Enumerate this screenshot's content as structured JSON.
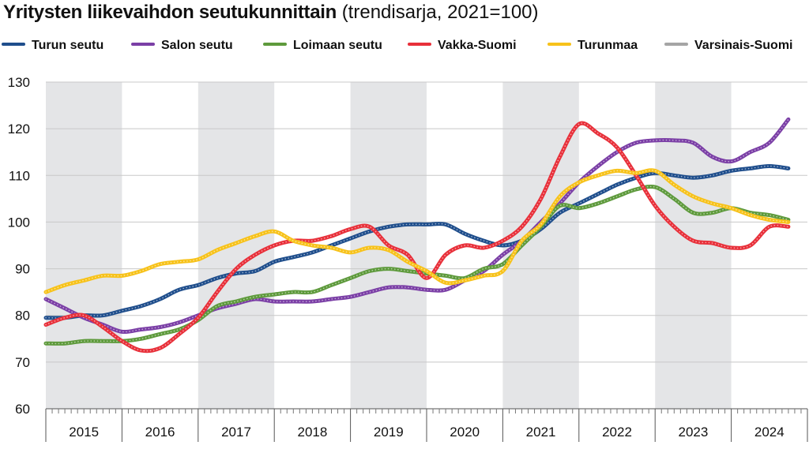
{
  "chart_data": {
    "type": "line",
    "title": "Yritysten liikevaihdon seutukunnittain",
    "subtitle": "(trendisarja, 2021=100)",
    "xlabel": "",
    "ylabel": "",
    "ylim": [
      60,
      130
    ],
    "yticks": [
      60,
      70,
      80,
      90,
      100,
      110,
      120,
      130
    ],
    "xlim": [
      2015.0,
      2025.0
    ],
    "years": [
      "2015",
      "2016",
      "2017",
      "2018",
      "2019",
      "2020",
      "2021",
      "2022",
      "2023",
      "2024"
    ],
    "shaded_years": [
      "2015",
      "2017",
      "2019",
      "2021",
      "2023"
    ],
    "grid": true,
    "legend_position": "top",
    "series": [
      {
        "name": "Turun seutu",
        "color": "#1f4e8c",
        "x": [
          2015.0,
          2015.25,
          2015.5,
          2015.75,
          2016.0,
          2016.25,
          2016.5,
          2016.75,
          2017.0,
          2017.25,
          2017.5,
          2017.75,
          2018.0,
          2018.25,
          2018.5,
          2018.75,
          2019.0,
          2019.25,
          2019.5,
          2019.75,
          2020.0,
          2020.25,
          2020.5,
          2020.75,
          2021.0,
          2021.25,
          2021.5,
          2021.75,
          2022.0,
          2022.25,
          2022.5,
          2022.75,
          2023.0,
          2023.25,
          2023.5,
          2023.75,
          2024.0,
          2024.25,
          2024.5,
          2024.75
        ],
        "values": [
          79.5,
          79.5,
          80.0,
          80.0,
          81.0,
          82.0,
          83.5,
          85.5,
          86.5,
          88.0,
          89.0,
          89.5,
          91.5,
          92.5,
          93.5,
          95.0,
          96.5,
          98.0,
          99.0,
          99.5,
          99.5,
          99.5,
          97.5,
          96.0,
          95.0,
          96.0,
          98.5,
          102.0,
          104.0,
          106.0,
          108.0,
          109.5,
          110.5,
          110.0,
          109.5,
          110.0,
          111.0,
          111.5,
          112.0,
          111.5
        ]
      },
      {
        "name": "Salon seutu",
        "color": "#7b3fa6",
        "x": [
          2015.0,
          2015.25,
          2015.5,
          2015.75,
          2016.0,
          2016.25,
          2016.5,
          2016.75,
          2017.0,
          2017.25,
          2017.5,
          2017.75,
          2018.0,
          2018.25,
          2018.5,
          2018.75,
          2019.0,
          2019.25,
          2019.5,
          2019.75,
          2020.0,
          2020.25,
          2020.5,
          2020.75,
          2021.0,
          2021.25,
          2021.5,
          2021.75,
          2022.0,
          2022.25,
          2022.5,
          2022.75,
          2023.0,
          2023.25,
          2023.5,
          2023.75,
          2024.0,
          2024.25,
          2024.5,
          2024.75
        ],
        "values": [
          83.5,
          81.5,
          79.5,
          78.0,
          76.5,
          77.0,
          77.5,
          78.5,
          80.0,
          81.5,
          82.5,
          83.5,
          83.0,
          83.0,
          83.0,
          83.5,
          84.0,
          85.0,
          86.0,
          86.0,
          85.5,
          85.5,
          87.5,
          89.5,
          93.0,
          96.0,
          100.0,
          104.0,
          108.5,
          112.0,
          115.0,
          117.0,
          117.5,
          117.5,
          117.0,
          114.0,
          113.0,
          115.0,
          117.0,
          122.0
        ]
      },
      {
        "name": "Loimaan seutu",
        "color": "#5e9a3c",
        "x": [
          2015.0,
          2015.25,
          2015.5,
          2015.75,
          2016.0,
          2016.25,
          2016.5,
          2016.75,
          2017.0,
          2017.25,
          2017.5,
          2017.75,
          2018.0,
          2018.25,
          2018.5,
          2018.75,
          2019.0,
          2019.25,
          2019.5,
          2019.75,
          2020.0,
          2020.25,
          2020.5,
          2020.75,
          2021.0,
          2021.25,
          2021.5,
          2021.75,
          2022.0,
          2022.25,
          2022.5,
          2022.75,
          2023.0,
          2023.25,
          2023.5,
          2023.75,
          2024.0,
          2024.25,
          2024.5,
          2024.75
        ],
        "values": [
          74.0,
          74.0,
          74.5,
          74.5,
          74.5,
          75.0,
          76.0,
          77.0,
          79.0,
          82.0,
          83.0,
          84.0,
          84.5,
          85.0,
          85.0,
          86.5,
          88.0,
          89.5,
          90.0,
          89.5,
          89.0,
          88.5,
          88.0,
          90.0,
          91.0,
          95.0,
          99.0,
          103.5,
          103.0,
          104.0,
          105.5,
          107.0,
          107.5,
          105.0,
          102.0,
          102.0,
          103.0,
          102.0,
          101.5,
          100.5
        ]
      },
      {
        "name": "Vakka-Suomi",
        "color": "#e8303a",
        "x": [
          2015.0,
          2015.25,
          2015.5,
          2015.75,
          2016.0,
          2016.25,
          2016.5,
          2016.75,
          2017.0,
          2017.25,
          2017.5,
          2017.75,
          2018.0,
          2018.25,
          2018.5,
          2018.75,
          2019.0,
          2019.25,
          2019.5,
          2019.75,
          2020.0,
          2020.25,
          2020.5,
          2020.75,
          2021.0,
          2021.25,
          2021.5,
          2021.75,
          2022.0,
          2022.25,
          2022.5,
          2022.75,
          2023.0,
          2023.25,
          2023.5,
          2023.75,
          2024.0,
          2024.25,
          2024.5,
          2024.75
        ],
        "values": [
          78.0,
          79.5,
          80.0,
          77.5,
          74.5,
          72.5,
          73.0,
          76.0,
          79.5,
          85.0,
          90.0,
          93.0,
          95.0,
          96.0,
          96.0,
          97.0,
          98.5,
          99.0,
          95.0,
          93.0,
          88.0,
          93.0,
          95.0,
          94.5,
          96.0,
          99.0,
          105.0,
          114.0,
          121.0,
          119.0,
          116.0,
          110.0,
          103.5,
          99.0,
          96.0,
          95.5,
          94.5,
          95.0,
          99.0,
          99.0
        ]
      },
      {
        "name": "Turunmaa",
        "color": "#f7c21a",
        "x": [
          2015.0,
          2015.25,
          2015.5,
          2015.75,
          2016.0,
          2016.25,
          2016.5,
          2016.75,
          2017.0,
          2017.25,
          2017.5,
          2017.75,
          2018.0,
          2018.25,
          2018.5,
          2018.75,
          2019.0,
          2019.25,
          2019.5,
          2019.75,
          2020.0,
          2020.25,
          2020.5,
          2020.75,
          2021.0,
          2021.25,
          2021.5,
          2021.75,
          2022.0,
          2022.25,
          2022.5,
          2022.75,
          2023.0,
          2023.25,
          2023.5,
          2023.75,
          2024.0,
          2024.25,
          2024.5,
          2024.75
        ],
        "values": [
          85.0,
          86.5,
          87.5,
          88.5,
          88.5,
          89.5,
          91.0,
          91.5,
          92.0,
          94.0,
          95.5,
          97.0,
          98.0,
          96.0,
          95.0,
          94.5,
          93.5,
          94.5,
          94.0,
          91.5,
          89.5,
          87.0,
          87.5,
          88.5,
          89.5,
          96.0,
          99.5,
          105.5,
          108.5,
          110.0,
          111.0,
          110.5,
          111.0,
          108.0,
          105.5,
          104.0,
          103.0,
          101.5,
          100.5,
          100.0
        ]
      },
      {
        "name": "Varsinais-Suomi",
        "color": "#a5a5a5",
        "x": [],
        "values": []
      }
    ]
  }
}
